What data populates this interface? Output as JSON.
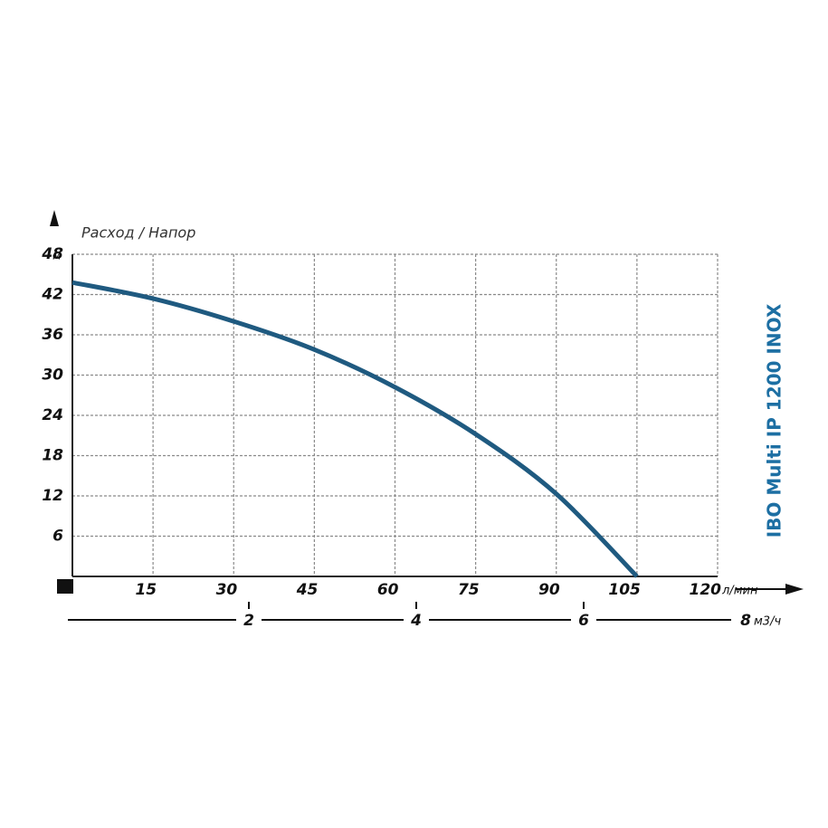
{
  "chart_data": {
    "type": "line",
    "title": "IBO Multi IP 1200 INOX",
    "axis_label": "Расход / Напор",
    "x_unit": "л/мин",
    "y_unit": "м",
    "x2_unit": "м3/ч",
    "x": [
      0,
      15,
      30,
      45,
      60,
      75,
      90,
      105
    ],
    "series": [
      {
        "name": "IBO Multi IP 1200 INOX",
        "color": "#1f5a80",
        "values": [
          43.8,
          41.4,
          38,
          33.8,
          28.2,
          21.2,
          12.3,
          0
        ]
      }
    ],
    "xlim": [
      0,
      120
    ],
    "xticks": [
      15,
      30,
      45,
      60,
      75,
      90,
      105,
      120
    ],
    "ylim": [
      0,
      48
    ],
    "yticks": [
      6,
      12,
      18,
      24,
      30,
      36,
      42,
      48
    ],
    "x2lim": [
      0,
      8
    ],
    "x2ticks": [
      2,
      4,
      6,
      8
    ],
    "grid": true
  }
}
